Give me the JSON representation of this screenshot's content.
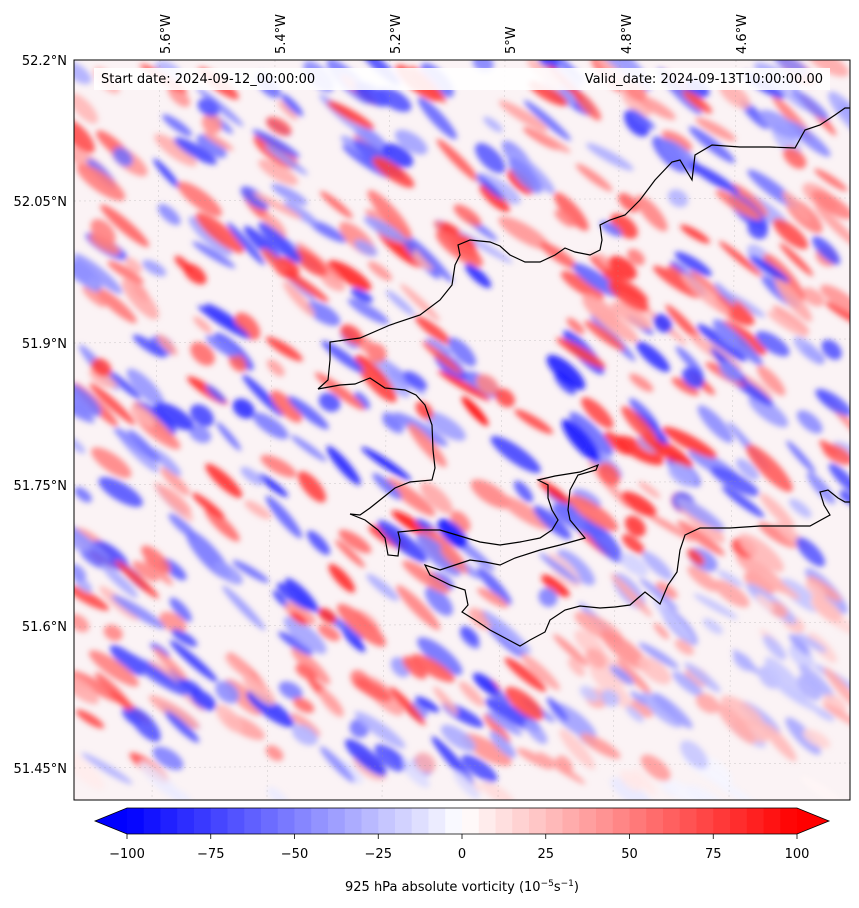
{
  "map": {
    "start_date_label": "Start date: 2024-09-12_00:00:00",
    "valid_date_label": "Valid_date: 2024-09-13T10:00:00.00",
    "lon_ticks": [
      "5.6°W",
      "5.4°W",
      "5.2°W",
      "5°W",
      "4.8°W",
      "4.6°W"
    ],
    "lat_ticks": [
      "52.2°N",
      "52.05°N",
      "51.9°N",
      "51.75°N",
      "51.6°N",
      "51.45°N"
    ],
    "colormap": "bwr",
    "colors": {
      "negative": "#0000ff",
      "zero": "#ffffff",
      "positive": "#ff0000",
      "coastline": "#000000"
    }
  },
  "colorbar": {
    "label": "925 hPa absolute vorticity (10",
    "label_exp1": "−5",
    "label_mid": "s",
    "label_exp2": "−1",
    "label_end": ")",
    "tick_labels": [
      "−100",
      "−75",
      "−50",
      "−25",
      "0",
      "25",
      "50",
      "75",
      "100"
    ],
    "range": [
      -100,
      100
    ],
    "extend": "both"
  }
}
